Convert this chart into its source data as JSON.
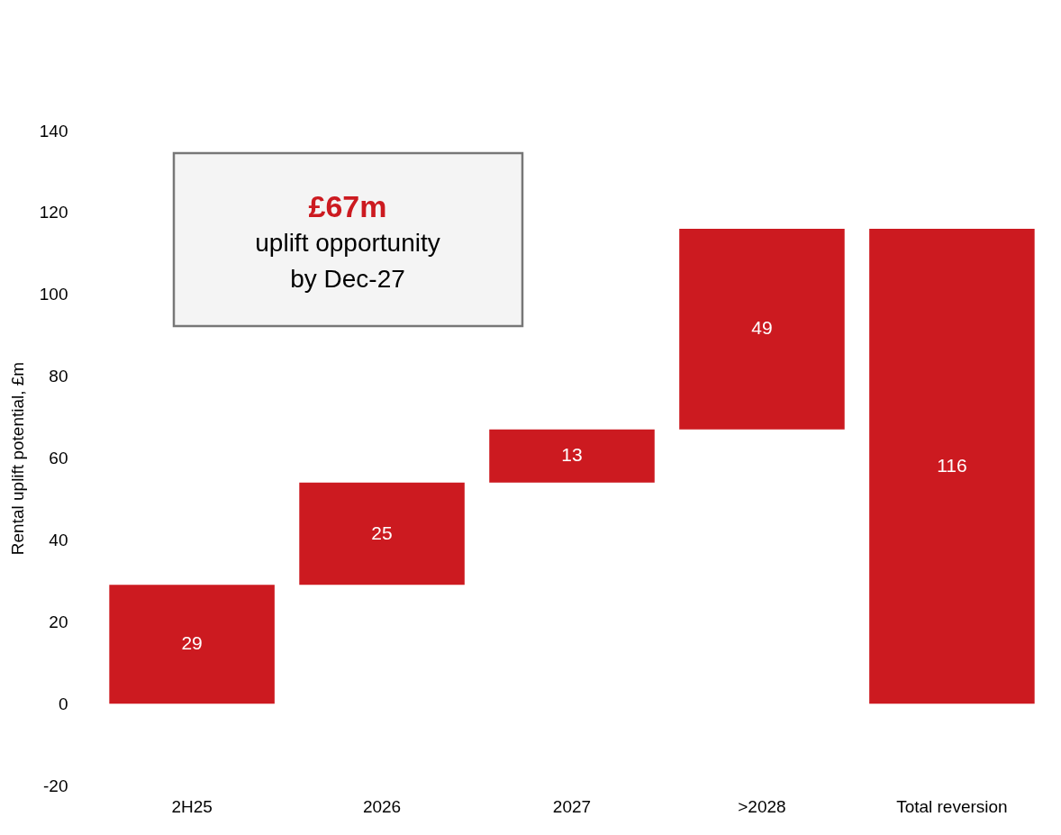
{
  "chart_data": {
    "type": "bar",
    "ylabel": "Rental uplift potential, £m",
    "categories": [
      "2H25",
      "2026",
      "2027",
      ">2028",
      "Total reversion"
    ],
    "values": [
      29,
      25,
      13,
      49,
      116
    ],
    "base": [
      0,
      29,
      54,
      67,
      0
    ],
    "color": "#cc1a20",
    "ylim": [
      -20,
      140
    ],
    "yticks": [
      -20,
      0,
      20,
      40,
      60,
      80,
      100,
      120,
      140
    ],
    "grid": false,
    "data_labels": true,
    "annotations": [
      "£67m",
      "uplift opportunity",
      "by Dec-27"
    ]
  }
}
